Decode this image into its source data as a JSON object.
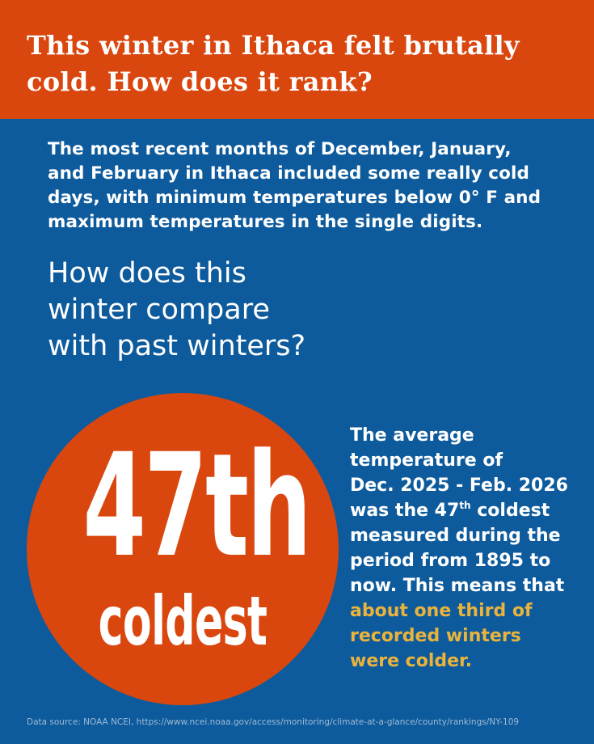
{
  "header": {
    "title_line1": "This winter in Ithaca felt brutally",
    "title_line2": "cold. How does it rank?"
  },
  "intro": {
    "line1": "The most recent months of December, January,",
    "line2": "and February in Ithaca included some really cold",
    "line3": "days, with minimum temperatures below 0° F and",
    "line4": "maximum temperatures in the single digits."
  },
  "question": {
    "line1": "How does this",
    "line2": "winter compare",
    "line3": "with past winters?"
  },
  "rank": {
    "number": "47th",
    "label": "coldest"
  },
  "explanation": {
    "line1": "The average",
    "line2": "temperature of",
    "line3": "Dec. 2025 - Feb. 2026",
    "line4_pre": "was the 47",
    "line4_sup": "th",
    "line4_post": " coldest",
    "line5": "measured during the",
    "line6": "period from 1895 to",
    "line7": "now.  This means that",
    "highlight1": "about one third of",
    "highlight2": "recorded winters",
    "highlight3": "were colder."
  },
  "footer": {
    "source": "Data source: NOAA NCEI, https://www.ncei.noaa.gov/access/monitoring/climate-at-a-glance/county/rankings/NY-109"
  },
  "colors": {
    "background_blue": "#0d5b9c",
    "accent_orange": "#d9470f",
    "highlight_gold": "#eab33c",
    "text_white": "#ffffff"
  }
}
